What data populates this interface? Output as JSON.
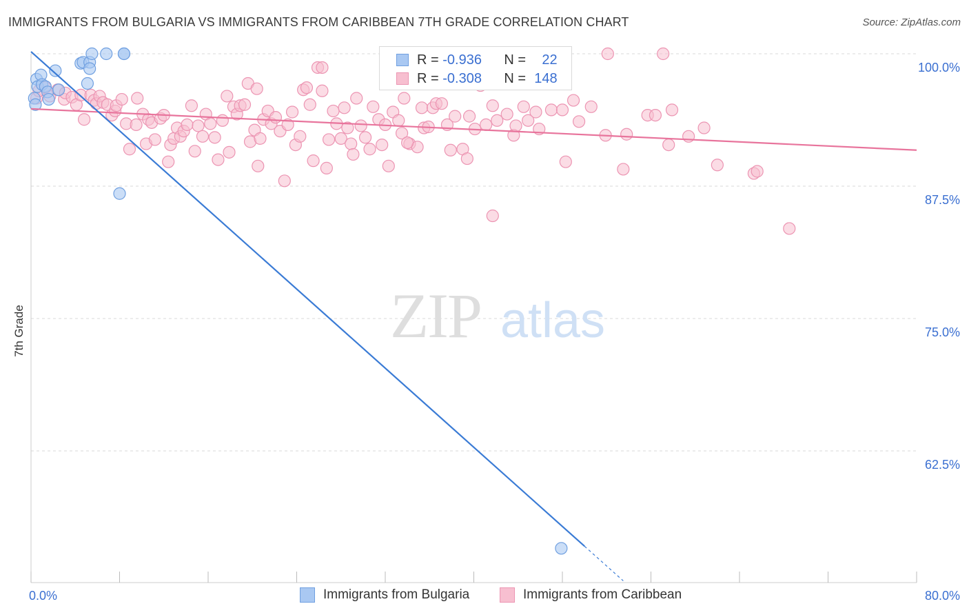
{
  "title": "IMMIGRANTS FROM BULGARIA VS IMMIGRANTS FROM CARIBBEAN 7TH GRADE CORRELATION CHART",
  "source": "Source: ZipAtlas.com",
  "watermark": {
    "zip": "ZIP",
    "atlas": "atlas"
  },
  "legend": {
    "series1": {
      "r_label": "R =",
      "r_value": "-0.936",
      "n_label": "N =",
      "n_value": "22"
    },
    "series2": {
      "r_label": "R =",
      "r_value": "-0.308",
      "n_label": "N =",
      "n_value": "148"
    }
  },
  "colors": {
    "bulgaria_fill": "#a9c8f2",
    "bulgaria_stroke": "#6f9fe0",
    "bulgaria_line": "#3a7bd5",
    "caribbean_fill": "#f7bfd0",
    "caribbean_stroke": "#ec94b2",
    "caribbean_line": "#e8749c",
    "tick_label": "#3a6fd1",
    "grid": "#d8d8d8"
  },
  "chart_data": {
    "type": "scatter",
    "title": "IMMIGRANTS FROM BULGARIA VS IMMIGRANTS FROM CARIBBEAN 7TH GRADE CORRELATION CHART",
    "xlabel": "",
    "ylabel": "7th Grade",
    "xlim": [
      0,
      80
    ],
    "ylim": [
      52,
      100
    ],
    "x_tick_labels": [
      {
        "x": 0,
        "label": "0.0%"
      },
      {
        "x": 80,
        "label": "80.0%"
      }
    ],
    "y_tick_labels": [
      {
        "y": 100,
        "label": "100.0%"
      },
      {
        "y": 87.5,
        "label": "87.5%"
      },
      {
        "y": 75,
        "label": "75.0%"
      },
      {
        "y": 62.5,
        "label": "62.5%"
      }
    ],
    "grid": true,
    "legend_position": "top-center",
    "series": [
      {
        "name": "Immigrants from Bulgaria",
        "r": -0.936,
        "n": 22,
        "trend": {
          "x0": 0,
          "y0": 100.2,
          "x1": 50,
          "y1": 53.5,
          "dash_to_x": 53.5
        },
        "points": [
          [
            0.3,
            95.8
          ],
          [
            0.5,
            97.6
          ],
          [
            0.6,
            96.9
          ],
          [
            0.9,
            98.0
          ],
          [
            1.0,
            97.1
          ],
          [
            1.3,
            96.9
          ],
          [
            1.5,
            96.4
          ],
          [
            1.6,
            95.7
          ],
          [
            2.2,
            98.4
          ],
          [
            2.5,
            96.6
          ],
          [
            4.5,
            99.1
          ],
          [
            4.7,
            99.2
          ],
          [
            5.3,
            99.2
          ],
          [
            5.3,
            98.6
          ],
          [
            5.1,
            97.2
          ],
          [
            5.5,
            100.0
          ],
          [
            6.8,
            100.0
          ],
          [
            8.4,
            100.0
          ],
          [
            8.4,
            100.0
          ],
          [
            8.0,
            86.8
          ],
          [
            47.9,
            53.3
          ],
          [
            0.4,
            95.2
          ]
        ]
      },
      {
        "name": "Immigrants from Caribbean",
        "r": -0.308,
        "n": 148,
        "trend": {
          "x0": 0,
          "y0": 94.8,
          "x1": 80,
          "y1": 90.9
        },
        "points": [
          [
            0.5,
            95.8
          ],
          [
            0.7,
            96.5
          ],
          [
            1.3,
            96.8
          ],
          [
            1.7,
            96.0
          ],
          [
            2.4,
            96.6
          ],
          [
            3.0,
            95.7
          ],
          [
            3.1,
            96.3
          ],
          [
            3.7,
            95.9
          ],
          [
            4.1,
            95.2
          ],
          [
            4.5,
            96.1
          ],
          [
            4.8,
            93.8
          ],
          [
            5.4,
            96.1
          ],
          [
            5.7,
            95.6
          ],
          [
            5.9,
            95.3
          ],
          [
            6.2,
            96.0
          ],
          [
            6.5,
            95.4
          ],
          [
            6.9,
            95.2
          ],
          [
            7.3,
            94.2
          ],
          [
            7.6,
            94.6
          ],
          [
            7.7,
            95.1
          ],
          [
            8.2,
            95.7
          ],
          [
            8.6,
            93.4
          ],
          [
            8.9,
            91.0
          ],
          [
            9.5,
            93.3
          ],
          [
            9.6,
            95.8
          ],
          [
            10.1,
            94.3
          ],
          [
            10.4,
            91.5
          ],
          [
            10.6,
            93.8
          ],
          [
            10.9,
            93.5
          ],
          [
            11.2,
            91.9
          ],
          [
            11.7,
            93.9
          ],
          [
            12.0,
            94.2
          ],
          [
            12.4,
            89.8
          ],
          [
            12.6,
            91.4
          ],
          [
            12.9,
            92.0
          ],
          [
            13.2,
            93.0
          ],
          [
            13.5,
            92.2
          ],
          [
            13.8,
            92.7
          ],
          [
            14.1,
            93.3
          ],
          [
            14.5,
            95.1
          ],
          [
            14.8,
            90.8
          ],
          [
            15.1,
            93.2
          ],
          [
            15.5,
            92.2
          ],
          [
            15.8,
            94.3
          ],
          [
            16.2,
            93.4
          ],
          [
            16.6,
            92.1
          ],
          [
            16.9,
            90.0
          ],
          [
            17.3,
            93.7
          ],
          [
            17.7,
            96.0
          ],
          [
            17.9,
            90.7
          ],
          [
            18.3,
            95.0
          ],
          [
            18.6,
            94.3
          ],
          [
            18.9,
            95.1
          ],
          [
            19.3,
            95.2
          ],
          [
            19.6,
            97.2
          ],
          [
            19.8,
            91.7
          ],
          [
            20.2,
            92.8
          ],
          [
            20.5,
            89.4
          ],
          [
            20.7,
            92.0
          ],
          [
            21.0,
            93.8
          ],
          [
            21.4,
            94.6
          ],
          [
            21.7,
            93.4
          ],
          [
            22.1,
            94.0
          ],
          [
            22.5,
            92.7
          ],
          [
            22.9,
            88.0
          ],
          [
            23.2,
            93.3
          ],
          [
            23.6,
            94.5
          ],
          [
            23.9,
            91.4
          ],
          [
            24.3,
            92.2
          ],
          [
            24.6,
            96.6
          ],
          [
            24.9,
            96.8
          ],
          [
            25.2,
            95.2
          ],
          [
            25.5,
            89.9
          ],
          [
            25.9,
            98.7
          ],
          [
            26.3,
            96.5
          ],
          [
            26.7,
            89.2
          ],
          [
            26.9,
            91.9
          ],
          [
            27.3,
            94.6
          ],
          [
            27.6,
            93.4
          ],
          [
            28.0,
            92.0
          ],
          [
            28.3,
            94.9
          ],
          [
            28.6,
            93.0
          ],
          [
            28.9,
            91.5
          ],
          [
            29.1,
            90.5
          ],
          [
            29.4,
            95.8
          ],
          [
            29.8,
            93.2
          ],
          [
            30.2,
            92.1
          ],
          [
            30.6,
            91.0
          ],
          [
            30.9,
            95.0
          ],
          [
            31.4,
            93.8
          ],
          [
            31.7,
            91.4
          ],
          [
            32.0,
            93.3
          ],
          [
            32.3,
            89.4
          ],
          [
            32.7,
            94.5
          ],
          [
            33.2,
            93.7
          ],
          [
            33.5,
            92.5
          ],
          [
            33.7,
            95.8
          ],
          [
            34.2,
            91.5
          ],
          [
            34.9,
            91.2
          ],
          [
            35.3,
            94.9
          ],
          [
            35.5,
            93.0
          ],
          [
            35.9,
            93.1
          ],
          [
            36.3,
            94.9
          ],
          [
            36.6,
            95.3
          ],
          [
            37.1,
            95.3
          ],
          [
            37.6,
            93.3
          ],
          [
            37.9,
            90.9
          ],
          [
            38.3,
            94.1
          ],
          [
            39.0,
            91.0
          ],
          [
            39.4,
            90.1
          ],
          [
            39.6,
            94.1
          ],
          [
            40.1,
            92.9
          ],
          [
            40.6,
            97.0
          ],
          [
            41.1,
            93.3
          ],
          [
            41.7,
            95.1
          ],
          [
            42.1,
            93.7
          ],
          [
            43.0,
            94.3
          ],
          [
            43.6,
            92.3
          ],
          [
            43.8,
            93.2
          ],
          [
            44.9,
            93.7
          ],
          [
            45.6,
            94.5
          ],
          [
            45.9,
            92.9
          ],
          [
            47.0,
            94.7
          ],
          [
            48.0,
            94.7
          ],
          [
            48.3,
            89.8
          ],
          [
            49.0,
            95.6
          ],
          [
            49.5,
            93.6
          ],
          [
            50.6,
            95.0
          ],
          [
            51.9,
            92.3
          ],
          [
            53.8,
            92.4
          ],
          [
            55.7,
            94.2
          ],
          [
            56.4,
            94.2
          ],
          [
            57.9,
            94.7
          ],
          [
            62.0,
            89.5
          ],
          [
            65.3,
            88.7
          ],
          [
            65.6,
            88.9
          ],
          [
            68.5,
            83.5
          ],
          [
            41.7,
            84.7
          ],
          [
            52.1,
            100.0
          ],
          [
            57.1,
            100.0
          ],
          [
            26.3,
            98.7
          ],
          [
            34.0,
            91.6
          ],
          [
            59.4,
            92.2
          ],
          [
            57.6,
            91.4
          ],
          [
            53.5,
            89.1
          ],
          [
            60.8,
            93.0
          ],
          [
            44.5,
            95.0
          ],
          [
            20.4,
            96.7
          ]
        ]
      }
    ]
  },
  "bottom_legend": {
    "series1": "Immigrants from Bulgaria",
    "series2": "Immigrants from Caribbean"
  }
}
